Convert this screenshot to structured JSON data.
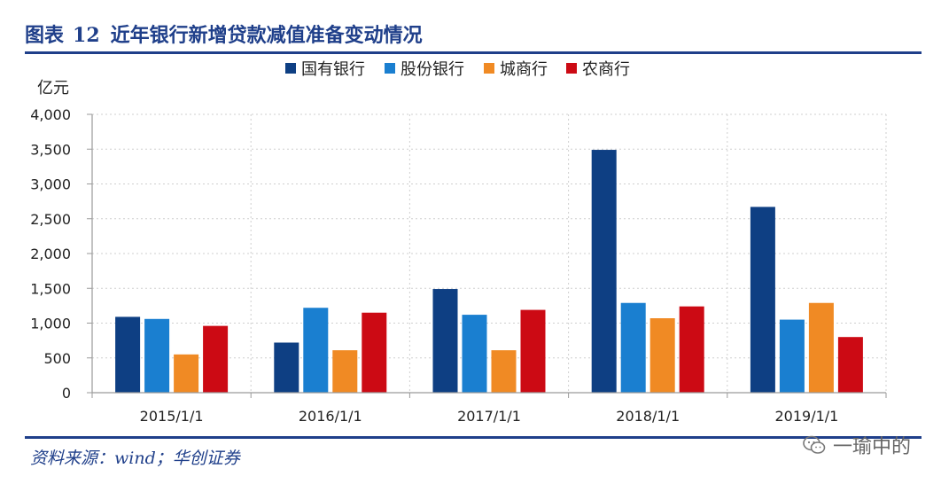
{
  "header": {
    "fig_label": "图表",
    "fig_number": "12",
    "fig_title": "近年银行新增贷款减值准备变动情况"
  },
  "footer": {
    "source": "资料来源：wind；华创证券",
    "watermark": "一瑜中的",
    "watermark_icon": "wechat-icon"
  },
  "chart_data": {
    "type": "bar",
    "title": "近年银行新增贷款减值准备变动情况",
    "ylabel": "亿元",
    "xlabel": "",
    "ylim": [
      0,
      4000
    ],
    "yticks": [
      "0",
      "500",
      "1,000",
      "1,500",
      "2,000",
      "2,500",
      "3,000",
      "3,500",
      "4,000"
    ],
    "ytick_values": [
      0,
      500,
      1000,
      1500,
      2000,
      2500,
      3000,
      3500,
      4000
    ],
    "grid": true,
    "legend_position": "top-center",
    "categories": [
      "2015/1/1",
      "2016/1/1",
      "2017/1/1",
      "2018/1/1",
      "2019/1/1"
    ],
    "series": [
      {
        "name": "国有银行",
        "color": "#0e3f83",
        "values": [
          1090,
          720,
          1490,
          3490,
          2670
        ]
      },
      {
        "name": "股份银行",
        "color": "#1a7fd0",
        "values": [
          1060,
          1220,
          1120,
          1290,
          1050
        ]
      },
      {
        "name": "城商行",
        "color": "#f08a24",
        "values": [
          550,
          610,
          610,
          1070,
          1290
        ]
      },
      {
        "name": "农商行",
        "color": "#cc0a14",
        "values": [
          960,
          1150,
          1190,
          1240,
          800
        ]
      }
    ]
  }
}
